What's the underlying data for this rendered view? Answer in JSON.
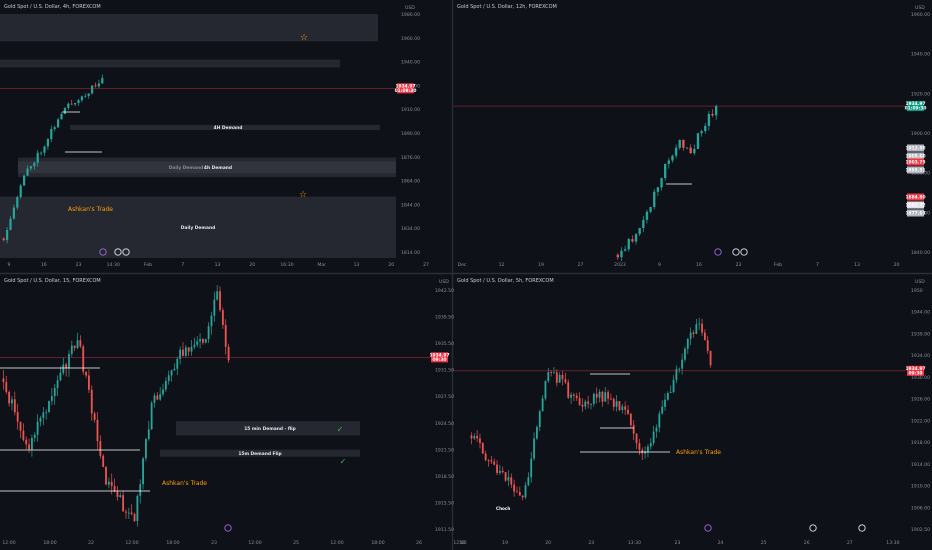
{
  "colors": {
    "bg": "#0f1118",
    "up": "#26a69a",
    "down": "#ef5350",
    "zone": "#3a3d47",
    "price_red": "#f23645",
    "price_green": "#089981",
    "trade_text": "#ff9f0a",
    "check": "#4caf50",
    "star": "#ff9f0a"
  },
  "chart_data": [
    {
      "type": "candlestick",
      "title": "Gold Spot / U.S. Dollar, 4h, FOREXCOM",
      "y_unit": "USD",
      "ylim": [
        1805,
        1995
      ],
      "yticks": [
        "1980.00",
        "1960.00",
        "1940.00",
        "1930.00",
        "1910.00",
        "1890.00",
        "1876.00",
        "1864.00",
        "1844.00",
        "1834.00",
        "1814.00"
      ],
      "xticks": [
        "9",
        "16",
        "23",
        "14:30",
        "Feb",
        "7",
        "13",
        "20",
        "16:30",
        "Mar",
        "13",
        "20",
        "27"
      ],
      "price_tags": [
        "1934.97",
        "01:09:30"
      ],
      "zones": [
        {
          "label": "",
          "y_top": 1992,
          "y_bottom": 1971
        },
        {
          "label": "",
          "y_top": 1957,
          "y_bottom": 1951
        },
        {
          "label": "4H Demand",
          "y_top": 1907,
          "y_bottom": 1903
        },
        {
          "label": "Daily Demand",
          "y_top": 1882,
          "y_bottom": 1867
        },
        {
          "label": "4h Demand",
          "y_top": 1879,
          "y_bottom": 1870
        },
        {
          "label": "Daily Demand",
          "y_top": 1852,
          "y_bottom": 1805
        }
      ],
      "annotations": [
        {
          "text": "Ashkan's Trade"
        }
      ]
    },
    {
      "type": "candlestick",
      "title": "Gold Spot / U.S. Dollar, 12h, FOREXCOM",
      "y_unit": "USD",
      "ylim": [
        1840,
        1995
      ],
      "yticks": [
        "1960.00",
        "1940.00",
        "1920.00",
        "1900.00",
        "1880.00",
        "1860.00",
        "1840.00"
      ],
      "xticks": [
        "Dec",
        "12",
        "19",
        "27",
        "2023",
        "9",
        "16",
        "23",
        "Feb",
        "7",
        "13",
        "20",
        "Mar"
      ],
      "price_tags": [
        "1934.97",
        "01:09:30"
      ],
      "side_tags": [
        "1912.88",
        "1905.60",
        "1903.75",
        "1895.51",
        "1884.80",
        "1882.72",
        "1877.63"
      ]
    },
    {
      "type": "candlestick",
      "title": "Gold Spot / U.S. Dollar, 15, FOREXCOM",
      "y_unit": "USD",
      "ylim": [
        1910,
        1945
      ],
      "yticks": [
        "1942.50",
        "1939.50",
        "1935.50",
        "1931.50",
        "1927.50",
        "1924.50",
        "1921.50",
        "1918.50",
        "1915.50",
        "1911.50"
      ],
      "xticks": [
        "12:00",
        "18:00",
        "22",
        "12:00",
        "18:00",
        "23",
        "12:00",
        "25",
        "12:00",
        "18:00",
        "26",
        "12:00"
      ],
      "price_tags": [
        "1934.97",
        "09:30"
      ],
      "zones": [
        {
          "label": "15 min Demand - flip",
          "y_top": 1926,
          "y_bottom": 1924
        },
        {
          "label": "15m Demand Flip",
          "y_top": 1922,
          "y_bottom": 1921
        }
      ],
      "annotations": [
        {
          "text": "Ashkan's Trade"
        }
      ]
    },
    {
      "type": "candlestick",
      "title": "Gold Spot / U.S. Dollar, 5h, FOREXCOM",
      "y_unit": "USD",
      "ylim": [
        1902,
        1952
      ],
      "yticks": [
        "1950",
        "1944.00",
        "1939.00",
        "1934.00",
        "1930.00",
        "1926.00",
        "1922.00",
        "1918.00",
        "1914.00",
        "1910.00",
        "1906.00",
        "1902.50"
      ],
      "xticks": [
        "18",
        "19",
        "20",
        "23",
        "13:30",
        "23",
        "24",
        "25",
        "26",
        "27",
        "13:30",
        "30"
      ],
      "price_tags": [
        "1934.97",
        "09:30"
      ],
      "annotations": [
        {
          "text": "Ashkan's Trade"
        },
        {
          "text": "Choch"
        }
      ]
    }
  ]
}
